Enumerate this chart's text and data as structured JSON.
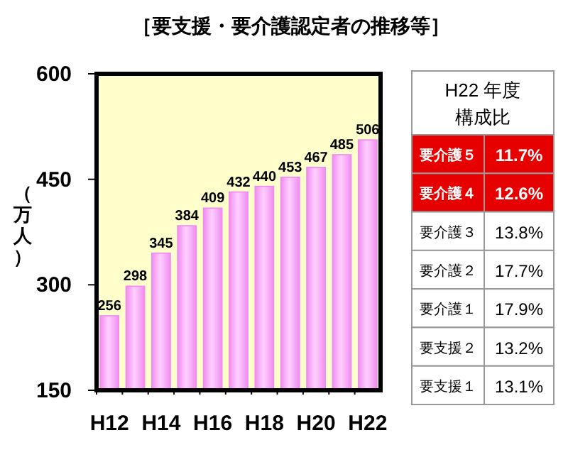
{
  "chart_data": [
    {
      "type": "bar",
      "title": "［要支援・要介護認定者の推移等］",
      "ylabel": "（万人）",
      "categories": [
        "H12",
        null,
        "H14",
        null,
        "H16",
        null,
        "H18",
        null,
        "H20",
        null,
        "H22"
      ],
      "values": [
        256,
        298,
        345,
        384,
        409,
        432,
        440,
        453,
        467,
        485,
        506
      ],
      "color": "#f08cf0",
      "ylim": [
        150,
        600
      ],
      "yticks": [
        150,
        300,
        450,
        600
      ],
      "data_labels": true
    },
    {
      "type": "other",
      "title": "H22 年度",
      "subtitle": "構成比",
      "categories": [
        "要介護５",
        "要介護４",
        "要介護３",
        "要介護２",
        "要介護１",
        "要支援２",
        "要支援１"
      ],
      "values": [
        11.7,
        12.6,
        13.8,
        17.7,
        17.9,
        13.2,
        13.1
      ],
      "value_labels": [
        "11.7%",
        "12.6%",
        "13.8%",
        "17.7%",
        "17.9%",
        "13.2%",
        "13.1%"
      ],
      "colors": [
        "#e60000",
        "#e60000",
        "#ffffff",
        "#ffffff",
        "#ffffff",
        "#ffffff",
        "#ffffff"
      ]
    }
  ]
}
